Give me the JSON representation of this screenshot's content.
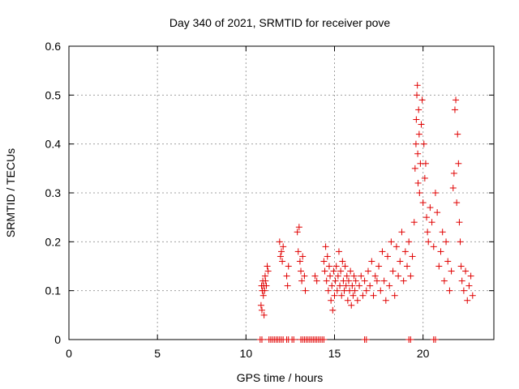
{
  "chart_data": {
    "type": "scatter",
    "title": "Day 340 of 2021, SRMTID for receiver pove",
    "xlabel": "GPS time / hours",
    "ylabel": "SRMTID / TECUs",
    "xlim": [
      0,
      24
    ],
    "ylim": [
      0,
      0.6
    ],
    "xticks": [
      0,
      5,
      10,
      15,
      20
    ],
    "xtick_labels": [
      "0",
      "5",
      "10",
      "15",
      "20"
    ],
    "yticks": [
      0,
      0.1,
      0.2,
      0.3,
      0.4,
      0.5,
      0.6
    ],
    "ytick_labels": [
      "0",
      "0.1",
      "0.2",
      "0.3",
      "0.4",
      "0.5",
      "0.6"
    ],
    "grid": true,
    "marker": "+",
    "series": [
      {
        "name": "SRMTID",
        "color": "#e00000",
        "x": [
          10.85,
          10.88,
          10.9,
          10.92,
          10.95,
          10.98,
          11.0,
          11.02,
          11.05,
          11.08,
          11.1,
          11.15,
          11.2,
          11.25,
          11.9,
          11.95,
          12.0,
          12.05,
          12.1,
          12.3,
          12.35,
          12.4,
          12.9,
          12.95,
          13.0,
          13.05,
          13.1,
          13.15,
          13.2,
          13.3,
          13.35,
          13.9,
          14.0,
          14.4,
          14.45,
          14.5,
          14.55,
          14.6,
          14.65,
          14.7,
          14.75,
          14.8,
          14.85,
          14.9,
          14.95,
          15.0,
          15.05,
          15.1,
          15.15,
          15.2,
          15.25,
          15.3,
          15.35,
          15.4,
          15.45,
          15.5,
          15.55,
          15.6,
          15.65,
          15.7,
          15.75,
          15.8,
          15.85,
          15.9,
          15.95,
          16.0,
          16.05,
          16.1,
          16.15,
          16.2,
          16.3,
          16.4,
          16.5,
          16.6,
          16.7,
          16.8,
          16.9,
          17.0,
          17.1,
          17.2,
          17.3,
          17.4,
          17.5,
          17.6,
          17.7,
          17.8,
          17.9,
          18.0,
          18.1,
          18.2,
          18.3,
          18.4,
          18.5,
          18.6,
          18.7,
          18.8,
          18.9,
          19.0,
          19.1,
          19.2,
          19.3,
          19.4,
          19.5,
          19.55,
          19.6,
          19.62,
          19.65,
          19.68,
          19.7,
          19.72,
          19.75,
          19.78,
          19.8,
          19.85,
          19.9,
          19.95,
          20.0,
          20.05,
          20.1,
          20.15,
          20.2,
          20.25,
          20.3,
          20.4,
          20.5,
          20.6,
          20.7,
          20.8,
          20.9,
          21.0,
          21.1,
          21.2,
          21.3,
          21.4,
          21.5,
          21.6,
          21.7,
          21.75,
          21.8,
          21.85,
          21.9,
          21.95,
          22.0,
          22.05,
          22.1,
          22.15,
          22.2,
          22.3,
          22.4,
          22.5,
          22.6,
          22.7,
          22.8
        ],
        "y": [
          0.07,
          0.11,
          0.06,
          0.1,
          0.12,
          0.09,
          0.11,
          0.05,
          0.1,
          0.13,
          0.12,
          0.11,
          0.15,
          0.14,
          0.2,
          0.17,
          0.18,
          0.16,
          0.19,
          0.13,
          0.11,
          0.15,
          0.22,
          0.18,
          0.23,
          0.16,
          0.14,
          0.12,
          0.17,
          0.13,
          0.1,
          0.13,
          0.12,
          0.16,
          0.14,
          0.19,
          0.12,
          0.17,
          0.1,
          0.15,
          0.13,
          0.08,
          0.11,
          0.06,
          0.14,
          0.09,
          0.12,
          0.15,
          0.1,
          0.13,
          0.18,
          0.11,
          0.14,
          0.09,
          0.16,
          0.12,
          0.1,
          0.15,
          0.11,
          0.13,
          0.08,
          0.12,
          0.1,
          0.14,
          0.07,
          0.11,
          0.09,
          0.13,
          0.1,
          0.12,
          0.08,
          0.11,
          0.13,
          0.09,
          0.12,
          0.1,
          0.14,
          0.11,
          0.16,
          0.09,
          0.13,
          0.12,
          0.15,
          0.1,
          0.18,
          0.12,
          0.08,
          0.17,
          0.11,
          0.2,
          0.14,
          0.09,
          0.19,
          0.13,
          0.16,
          0.22,
          0.12,
          0.18,
          0.15,
          0.2,
          0.13,
          0.17,
          0.24,
          0.35,
          0.4,
          0.45,
          0.5,
          0.52,
          0.38,
          0.32,
          0.47,
          0.42,
          0.3,
          0.36,
          0.44,
          0.49,
          0.28,
          0.4,
          0.33,
          0.36,
          0.25,
          0.22,
          0.2,
          0.27,
          0.24,
          0.19,
          0.3,
          0.26,
          0.15,
          0.18,
          0.22,
          0.12,
          0.2,
          0.16,
          0.1,
          0.14,
          0.31,
          0.34,
          0.47,
          0.49,
          0.28,
          0.42,
          0.36,
          0.24,
          0.2,
          0.15,
          0.12,
          0.1,
          0.14,
          0.08,
          0.11,
          0.13,
          0.09
        ]
      }
    ],
    "bottom_markers_x": [
      10.8,
      10.9,
      11.3,
      11.4,
      11.5,
      11.6,
      11.7,
      11.8,
      11.9,
      12.0,
      12.1,
      12.3,
      12.4,
      12.6,
      12.7,
      13.1,
      13.2,
      13.3,
      13.4,
      13.5,
      13.6,
      13.7,
      13.8,
      13.9,
      14.0,
      14.1,
      14.2,
      14.3,
      14.4,
      16.7,
      16.8,
      19.2,
      19.3,
      20.6,
      20.7
    ]
  }
}
